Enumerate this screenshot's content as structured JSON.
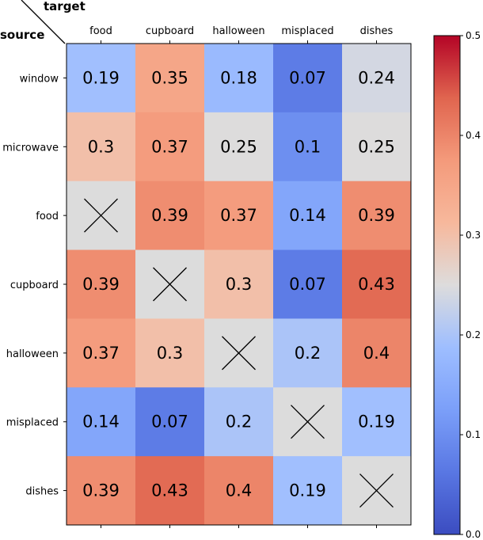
{
  "chart_data": {
    "type": "heatmap",
    "row_axis_title": "source",
    "col_axis_title": "target",
    "columns": [
      "food",
      "cupboard",
      "halloween",
      "misplaced",
      "dishes"
    ],
    "rows": [
      "window",
      "microwave",
      "food",
      "cupboard",
      "halloween",
      "misplaced",
      "dishes"
    ],
    "values": [
      [
        0.19,
        0.35,
        0.18,
        0.07,
        0.24
      ],
      [
        0.3,
        0.37,
        0.25,
        0.1,
        0.25
      ],
      [
        null,
        0.39,
        0.37,
        0.14,
        0.39
      ],
      [
        0.39,
        null,
        0.3,
        0.07,
        0.43
      ],
      [
        0.37,
        0.3,
        null,
        0.2,
        0.4
      ],
      [
        0.14,
        0.07,
        0.2,
        null,
        0.19
      ],
      [
        0.39,
        0.43,
        0.4,
        0.19,
        null
      ]
    ],
    "value_labels": [
      [
        "0.19",
        "0.35",
        "0.18",
        "0.07",
        "0.24"
      ],
      [
        "0.3",
        "0.37",
        "0.25",
        "0.1",
        "0.25"
      ],
      [
        "",
        "0.39",
        "0.37",
        "0.14",
        "0.39"
      ],
      [
        "0.39",
        "",
        "0.3",
        "0.07",
        "0.43"
      ],
      [
        "0.37",
        "0.3",
        "",
        "0.2",
        "0.4"
      ],
      [
        "0.14",
        "0.07",
        "0.2",
        "",
        "0.19"
      ],
      [
        "0.39",
        "0.43",
        "0.4",
        "0.19",
        ""
      ]
    ],
    "masked_cell_marker": "X",
    "masked_cell_color": "#dcdcdc",
    "colormap": "coolwarm",
    "vmin": 0.0,
    "vmax": 0.5,
    "colorbar_ticks": [
      "0.0",
      "0.1",
      "0.2",
      "0.3",
      "0.4",
      "0.5"
    ],
    "colorbar_tick_values": [
      0.0,
      0.1,
      0.2,
      0.3,
      0.4,
      0.5
    ]
  }
}
